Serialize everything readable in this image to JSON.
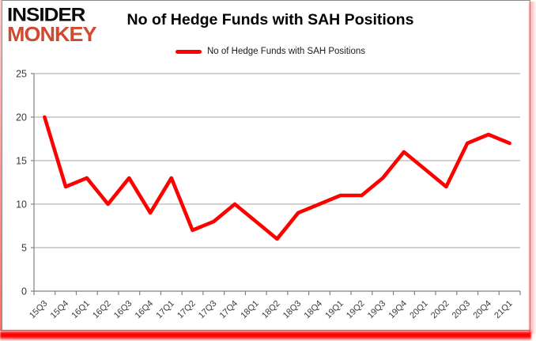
{
  "logo": {
    "line1": "INSIDER",
    "line2": "MONKEY"
  },
  "header": {
    "title": "No of Hedge Funds with SAH Positions"
  },
  "legend": {
    "label": "No of Hedge Funds with SAH Positions"
  },
  "colors": {
    "series": "#ff0000",
    "logo_primary": "#0c0c0c",
    "logo_accent": "#d04a31",
    "grid": "#a6a6a6",
    "axis": "#808080",
    "tick_text": "#3a3a3a",
    "frame_glow": "#ff0000"
  },
  "chart_data": {
    "type": "line",
    "title": "No of Hedge Funds with SAH Positions",
    "categories": [
      "15Q3",
      "15Q4",
      "16Q1",
      "16Q2",
      "16Q3",
      "16Q4",
      "17Q1",
      "17Q2",
      "17Q3",
      "17Q4",
      "18Q1",
      "18Q2",
      "18Q3",
      "18Q4",
      "19Q1",
      "19Q2",
      "19Q3",
      "19Q4",
      "20Q1",
      "20Q2",
      "20Q3",
      "20Q4",
      "21Q1"
    ],
    "series": [
      {
        "name": "No of Hedge Funds with SAH Positions",
        "color": "#ff0000",
        "values": [
          20,
          12,
          13,
          10,
          13,
          9,
          13,
          7,
          8,
          10,
          8,
          6,
          9,
          10,
          11,
          11,
          13,
          16,
          14,
          12,
          17,
          18,
          17
        ]
      }
    ],
    "xlabel": "",
    "ylabel": "",
    "ylim": [
      0,
      25
    ],
    "yticks": [
      0,
      5,
      10,
      15,
      20,
      25
    ],
    "grid": true,
    "legend_position": "top-center",
    "x_tick_rotation": -45
  }
}
